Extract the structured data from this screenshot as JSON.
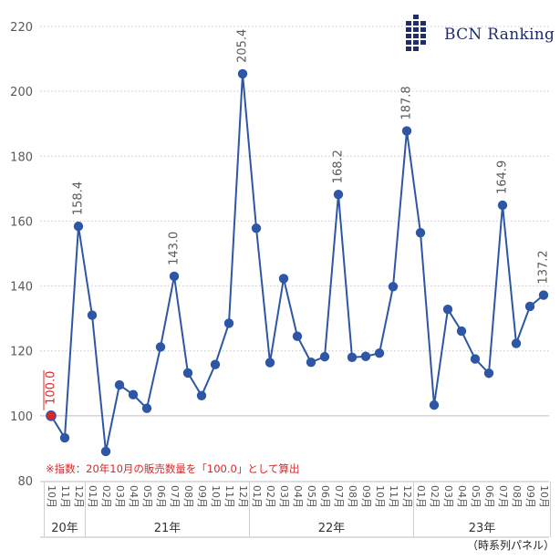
{
  "brand": "BCN Ranking",
  "colors": {
    "line": "#2e56a6",
    "base_point": "#d62828",
    "note": "#d62828",
    "grid": "#c8c8c8",
    "label": "#595959"
  },
  "note": "※指数：20年10月の販売数量を「100.0」として算出",
  "footer": "（時系列パネル）",
  "chart_data": {
    "type": "line",
    "y_axis": {
      "min": 80,
      "max": 220,
      "ticks": [
        80,
        100,
        120,
        140,
        160,
        180,
        200,
        220
      ]
    },
    "grid": true,
    "x_months": [
      "10月",
      "11月",
      "12月",
      "01月",
      "02月",
      "03月",
      "04月",
      "05月",
      "06月",
      "07月",
      "08月",
      "09月",
      "10月",
      "11月",
      "12月",
      "01月",
      "02月",
      "03月",
      "04月",
      "05月",
      "06月",
      "07月",
      "08月",
      "09月",
      "10月",
      "11月",
      "12月",
      "01月",
      "02月",
      "03月",
      "04月",
      "05月",
      "06月",
      "07月",
      "08月",
      "09月",
      "10月"
    ],
    "year_groups": [
      {
        "label": "20年",
        "start": 0,
        "end": 2
      },
      {
        "label": "21年",
        "start": 3,
        "end": 14
      },
      {
        "label": "22年",
        "start": 15,
        "end": 26
      },
      {
        "label": "23年",
        "start": 27,
        "end": 36
      }
    ],
    "values": [
      100.0,
      93.2,
      158.4,
      131.0,
      89.0,
      109.5,
      106.5,
      102.3,
      121.2,
      143.0,
      113.2,
      106.2,
      115.8,
      128.5,
      205.4,
      157.8,
      116.4,
      142.3,
      124.5,
      116.5,
      118.2,
      168.2,
      118.0,
      118.3,
      119.3,
      139.8,
      187.8,
      156.4,
      103.3,
      132.8,
      126.1,
      117.5,
      113.1,
      164.9,
      122.3,
      133.7,
      137.2
    ],
    "labeled_points": [
      {
        "index": 0,
        "text": "100.0"
      },
      {
        "index": 2,
        "text": "158.4"
      },
      {
        "index": 9,
        "text": "143.0"
      },
      {
        "index": 14,
        "text": "205.4"
      },
      {
        "index": 21,
        "text": "168.2"
      },
      {
        "index": 26,
        "text": "187.8"
      },
      {
        "index": 33,
        "text": "164.9"
      },
      {
        "index": 36,
        "text": "137.2"
      }
    ]
  }
}
